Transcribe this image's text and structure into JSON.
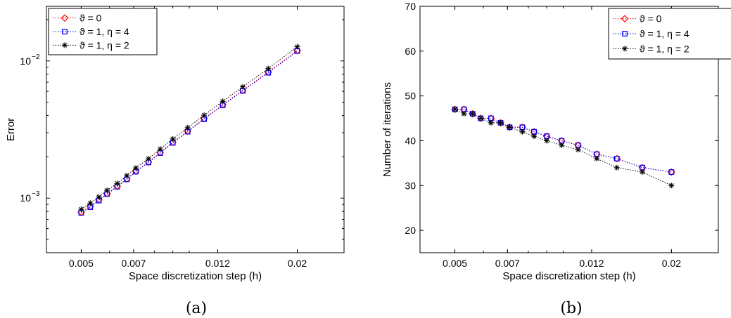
{
  "charts": [
    {
      "caption": "(a)",
      "chart_data": {
        "type": "line",
        "xlabel": "Space discretization step (h)",
        "ylabel": "Error",
        "x_tick_labels": [
          "0.005",
          "0.007",
          "0.012",
          "0.02"
        ],
        "x_ticks": [
          0.005,
          0.007,
          0.012,
          0.02
        ],
        "xlim": [
          0.004,
          0.027
        ],
        "x_scale": "log",
        "y_scale": "log",
        "ylim": [
          0.0004,
          0.025
        ],
        "y_ticks": [
          0.001,
          0.01
        ],
        "y_tick_labels": [
          {
            "base": "10",
            "exp": "−3"
          },
          {
            "base": "10",
            "exp": "−2"
          }
        ],
        "legend_position": "top-left",
        "grid": false,
        "series": [
          {
            "name": "ϑ = 0",
            "color": "#ff0000",
            "marker": "diamond",
            "x": [
              0.005,
              0.0053,
              0.0056,
              0.0059,
              0.0063,
              0.0067,
              0.0071,
              0.0077,
              0.0083,
              0.009,
              0.0099,
              0.011,
              0.0124,
              0.0141,
              0.0166,
              0.02
            ],
            "y": [
              0.00079,
              0.00087,
              0.00097,
              0.00108,
              0.00122,
              0.00138,
              0.00157,
              0.00183,
              0.00215,
              0.00255,
              0.00308,
              0.0038,
              0.0048,
              0.0061,
              0.0083,
              0.0119
            ]
          },
          {
            "name": "ϑ = 1, η = 4",
            "color": "#0000ff",
            "marker": "square",
            "x": [
              0.005,
              0.0053,
              0.0056,
              0.0059,
              0.0063,
              0.0067,
              0.0071,
              0.0077,
              0.0083,
              0.009,
              0.0099,
              0.011,
              0.0124,
              0.0141,
              0.0166,
              0.02
            ],
            "y": [
              0.00078,
              0.00086,
              0.00096,
              0.00107,
              0.00121,
              0.00137,
              0.00156,
              0.00182,
              0.00213,
              0.00253,
              0.00305,
              0.00376,
              0.00475,
              0.00605,
              0.0082,
              0.0118
            ]
          },
          {
            "name": "ϑ = 1, η = 2",
            "color": "#000000",
            "marker": "star",
            "x": [
              0.005,
              0.0053,
              0.0056,
              0.0059,
              0.0063,
              0.0067,
              0.0071,
              0.0077,
              0.0083,
              0.009,
              0.0099,
              0.011,
              0.0124,
              0.0141,
              0.0166,
              0.02
            ],
            "y": [
              0.00083,
              0.00092,
              0.00102,
              0.00114,
              0.00128,
              0.00146,
              0.00166,
              0.00194,
              0.00228,
              0.0027,
              0.00326,
              0.00402,
              0.00508,
              0.00648,
              0.0088,
              0.0127
            ]
          }
        ]
      }
    },
    {
      "caption": "(b)",
      "chart_data": {
        "type": "line",
        "xlabel": "Space discretization step (h)",
        "ylabel": "Number of iterations",
        "x_tick_labels": [
          "0.005",
          "0.007",
          "0.012",
          "0.02"
        ],
        "x_ticks": [
          0.005,
          0.007,
          0.012,
          0.02
        ],
        "xlim": [
          0.004,
          0.027
        ],
        "x_scale": "log",
        "y_scale": "linear",
        "ylim": [
          15,
          70
        ],
        "y_ticks": [
          20,
          30,
          40,
          50,
          60,
          70
        ],
        "y_tick_labels": [
          "20",
          "30",
          "40",
          "50",
          "60",
          "70"
        ],
        "legend_position": "top-right",
        "grid": false,
        "series": [
          {
            "name": "ϑ = 0",
            "color": "#ff0000",
            "marker": "diamond",
            "x": [
              0.005,
              0.0053,
              0.0056,
              0.0059,
              0.0063,
              0.0067,
              0.0071,
              0.0077,
              0.0083,
              0.009,
              0.0099,
              0.011,
              0.0124,
              0.0141,
              0.0166,
              0.02
            ],
            "y": [
              47,
              47,
              46,
              45,
              45,
              44,
              43,
              43,
              42,
              41,
              40,
              39,
              37,
              36,
              34,
              33
            ]
          },
          {
            "name": "ϑ = 1, η = 4",
            "color": "#0000ff",
            "marker": "square",
            "x": [
              0.005,
              0.0053,
              0.0056,
              0.0059,
              0.0063,
              0.0067,
              0.0071,
              0.0077,
              0.0083,
              0.009,
              0.0099,
              0.011,
              0.0124,
              0.0141,
              0.0166,
              0.02
            ],
            "y": [
              47,
              47,
              46,
              45,
              45,
              44,
              43,
              43,
              42,
              41,
              40,
              39,
              37,
              36,
              34,
              33
            ]
          },
          {
            "name": "ϑ = 1, η = 2",
            "color": "#000000",
            "marker": "star",
            "x": [
              0.005,
              0.0053,
              0.0056,
              0.0059,
              0.0063,
              0.0067,
              0.0071,
              0.0077,
              0.0083,
              0.009,
              0.0099,
              0.011,
              0.0124,
              0.0141,
              0.0166,
              0.02
            ],
            "y": [
              47,
              46,
              46,
              45,
              44,
              44,
              43,
              42,
              41,
              40,
              39,
              38,
              36,
              34,
              33,
              30
            ]
          }
        ]
      }
    }
  ]
}
